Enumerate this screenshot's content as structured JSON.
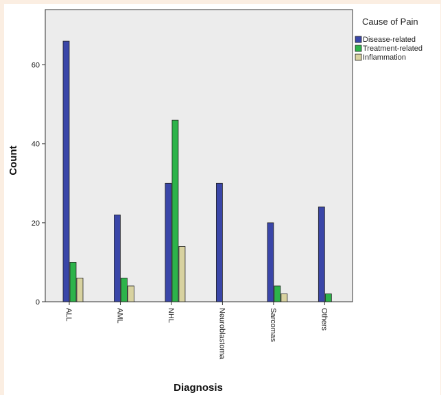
{
  "chart_data": {
    "type": "bar",
    "title": "",
    "xlabel": "Diagnosis",
    "ylabel": "Count",
    "ylim": [
      0,
      74
    ],
    "yticks": [
      0,
      20,
      40,
      60
    ],
    "categories": [
      "ALL",
      "AML",
      "NHL",
      "Neuroblastoma",
      "Sarcomas",
      "Others"
    ],
    "legend": {
      "title": "Cause of Pain",
      "placement": "right"
    },
    "grid": false,
    "series": [
      {
        "name": "Disease-related",
        "color": "#3a46a8",
        "values": [
          66,
          22,
          30,
          30,
          20,
          24
        ]
      },
      {
        "name": "Treatment-related",
        "color": "#2db34a",
        "values": [
          10,
          6,
          46,
          0,
          4,
          2
        ]
      },
      {
        "name": "Inflammation",
        "color": "#d8d2a0",
        "values": [
          6,
          4,
          14,
          0,
          2,
          0
        ]
      }
    ],
    "plot_background": "#ececec"
  }
}
